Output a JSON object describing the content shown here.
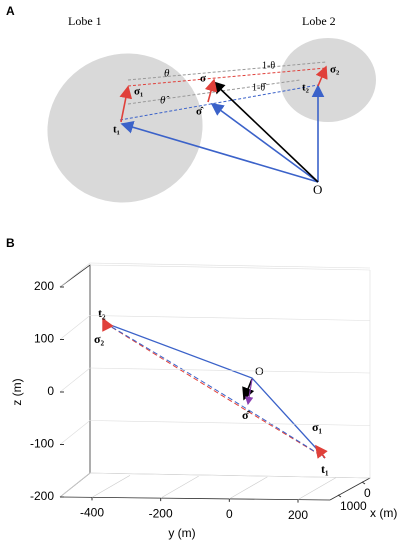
{
  "panel_a": {
    "label": "A",
    "lobe1": "Lobe 1",
    "lobe2": "Lobe 2",
    "theta": "θ",
    "one_minus_theta": "1-θ",
    "theta_hat": "θ̂",
    "one_minus_theta_hat": "1-θ̂",
    "sigma": "σ",
    "sigma_hat": "σ̂",
    "sigma1": "σ₁",
    "sigma2": "σ₂",
    "t1": "t₁",
    "t2": "t₂",
    "origin": "O"
  },
  "panel_b": {
    "label": "B",
    "zlabel": "z (m)",
    "ylabel": "y (m)",
    "xlabel": "x (m)",
    "zlim": [
      -200,
      200
    ],
    "zticks": [
      200,
      100,
      0,
      -100,
      -200
    ],
    "ylim": [
      -400,
      200
    ],
    "yticks": [
      -400,
      -200,
      0,
      200
    ],
    "xlim": [
      0,
      1000
    ],
    "xticks": [
      0,
      1000
    ],
    "t2": "t₂",
    "sigma2": "σ₂",
    "origin": "O",
    "sigma_hat": "σ̂",
    "sigma1": "σ₁",
    "t1": "t₁"
  }
}
